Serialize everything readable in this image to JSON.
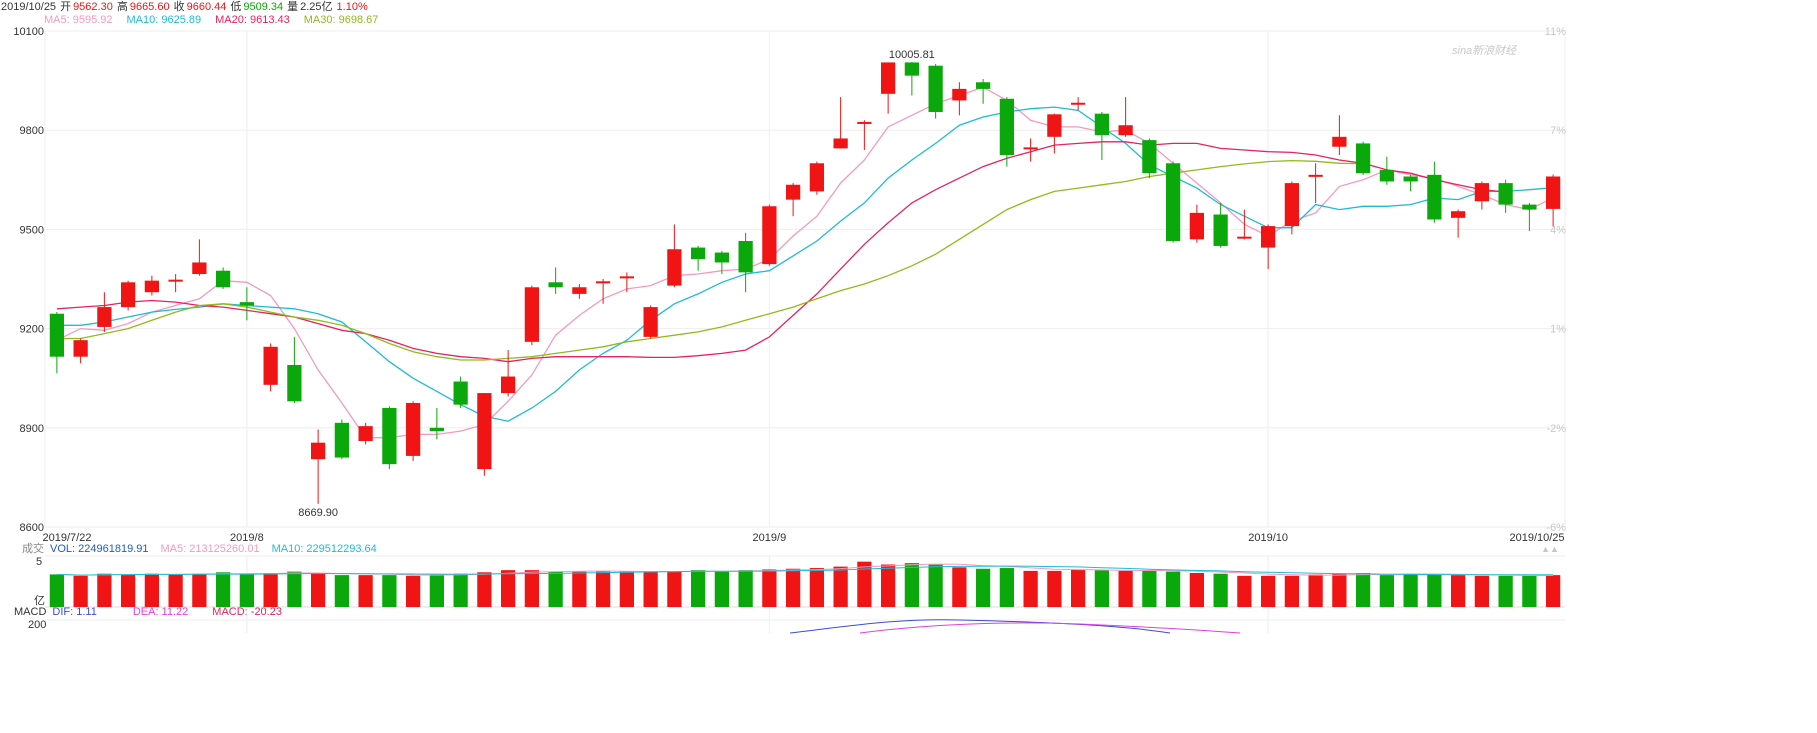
{
  "header": {
    "date": "2019/10/25",
    "open_label": "开",
    "open": "9562.30",
    "high_label": "高",
    "high": "9665.60",
    "close_label": "收",
    "close": "9660.44",
    "low_label": "低",
    "low": "9509.34",
    "vol_label": "量",
    "vol": "2.25亿",
    "change": "1.10%"
  },
  "ma_legend": {
    "ma5": "MA5: 9595.92",
    "ma10": "MA10: 9625.89",
    "ma20": "MA20: 9613.43",
    "ma30": "MA30: 9698.67"
  },
  "watermark": "sina新浪财经",
  "volume_legend": {
    "label": "成交",
    "vol": "VOL: 224961819.91",
    "ma5": "MA5: 213125260.01",
    "ma10": "MA10: 229512293.64",
    "unit": "亿",
    "tick": "5"
  },
  "macd_legend": {
    "label": "MACD",
    "dif": "DIF: 1.11",
    "dea": "DEA: 11.22",
    "macd": "MACD: -20.23",
    "tick": "200"
  },
  "colors": {
    "up": "#f01414",
    "down": "#0aa80a",
    "ma5": "#f29ac0",
    "ma10": "#1ebbd7",
    "ma20": "#e5235f",
    "ma30": "#8fbc1a"
  },
  "chart_data": {
    "type": "candlestick",
    "y_ticks": [
      "10100",
      "9800",
      "9500",
      "9200",
      "8900",
      "8600"
    ],
    "ylim": [
      8600,
      10100
    ],
    "pct_ticks": [
      "11%",
      "7%",
      "4%",
      "1%",
      "-2%",
      "-6%"
    ],
    "x_labels": [
      "2019/7/22",
      "2019/8",
      "2019/9",
      "2019/10",
      "2019/10/25"
    ],
    "annotations": {
      "high": "10005.81",
      "low": "8669.90"
    },
    "candles": [
      {
        "o": 9245,
        "c": 9115,
        "h": 9250,
        "l": 9065
      },
      {
        "o": 9115,
        "c": 9165,
        "h": 9170,
        "l": 9095
      },
      {
        "o": 9205,
        "c": 9265,
        "h": 9310,
        "l": 9190
      },
      {
        "o": 9265,
        "c": 9340,
        "h": 9345,
        "l": 9255
      },
      {
        "o": 9310,
        "c": 9345,
        "h": 9360,
        "l": 9300
      },
      {
        "o": 9345,
        "c": 9348,
        "h": 9365,
        "l": 9310
      },
      {
        "o": 9365,
        "c": 9400,
        "h": 9470,
        "l": 9360
      },
      {
        "o": 9375,
        "c": 9325,
        "h": 9385,
        "l": 9320
      },
      {
        "o": 9280,
        "c": 9270,
        "h": 9325,
        "l": 9225
      },
      {
        "o": 9030,
        "c": 9145,
        "h": 9155,
        "l": 9010
      },
      {
        "o": 9090,
        "c": 8980,
        "h": 9175,
        "l": 8975
      },
      {
        "o": 8805,
        "c": 8855,
        "h": 8895,
        "l": 8670
      },
      {
        "o": 8915,
        "c": 8810,
        "h": 8925,
        "l": 8805
      },
      {
        "o": 8860,
        "c": 8905,
        "h": 8915,
        "l": 8850
      },
      {
        "o": 8960,
        "c": 8790,
        "h": 8965,
        "l": 8775
      },
      {
        "o": 8815,
        "c": 8975,
        "h": 8980,
        "l": 8800
      },
      {
        "o": 8900,
        "c": 8890,
        "h": 8960,
        "l": 8865
      },
      {
        "o": 9040,
        "c": 8970,
        "h": 9055,
        "l": 8960
      },
      {
        "o": 8775,
        "c": 9005,
        "h": 9005,
        "l": 8755
      },
      {
        "o": 9005,
        "c": 9055,
        "h": 9135,
        "l": 8995
      },
      {
        "o": 9160,
        "c": 9325,
        "h": 9330,
        "l": 9150
      },
      {
        "o": 9340,
        "c": 9325,
        "h": 9385,
        "l": 9305
      },
      {
        "o": 9305,
        "c": 9325,
        "h": 9335,
        "l": 9290
      },
      {
        "o": 9340,
        "c": 9343,
        "h": 9350,
        "l": 9275
      },
      {
        "o": 9355,
        "c": 9358,
        "h": 9370,
        "l": 9310
      },
      {
        "o": 9175,
        "c": 9265,
        "h": 9270,
        "l": 9170
      },
      {
        "o": 9330,
        "c": 9440,
        "h": 9515,
        "l": 9325
      },
      {
        "o": 9445,
        "c": 9410,
        "h": 9450,
        "l": 9375
      },
      {
        "o": 9430,
        "c": 9400,
        "h": 9435,
        "l": 9365
      },
      {
        "o": 9465,
        "c": 9370,
        "h": 9490,
        "l": 9310
      },
      {
        "o": 9395,
        "c": 9570,
        "h": 9575,
        "l": 9390
      },
      {
        "o": 9590,
        "c": 9635,
        "h": 9640,
        "l": 9540
      },
      {
        "o": 9615,
        "c": 9700,
        "h": 9705,
        "l": 9605
      },
      {
        "o": 9745,
        "c": 9775,
        "h": 9900,
        "l": 9745
      },
      {
        "o": 9822,
        "c": 9825,
        "h": 9830,
        "l": 9740
      },
      {
        "o": 9910,
        "c": 10005,
        "h": 10005,
        "l": 9850
      },
      {
        "o": 10005,
        "c": 9965,
        "h": 10006,
        "l": 9905
      },
      {
        "o": 9995,
        "c": 9855,
        "h": 10000,
        "l": 9835
      },
      {
        "o": 9890,
        "c": 9925,
        "h": 9945,
        "l": 9845
      },
      {
        "o": 9945,
        "c": 9925,
        "h": 9955,
        "l": 9880
      },
      {
        "o": 9895,
        "c": 9725,
        "h": 9900,
        "l": 9690
      },
      {
        "o": 9745,
        "c": 9748,
        "h": 9775,
        "l": 9705
      },
      {
        "o": 9780,
        "c": 9848,
        "h": 9850,
        "l": 9730
      },
      {
        "o": 9878,
        "c": 9883,
        "h": 9900,
        "l": 9860
      },
      {
        "o": 9850,
        "c": 9785,
        "h": 9855,
        "l": 9710
      },
      {
        "o": 9785,
        "c": 9815,
        "h": 9900,
        "l": 9780
      },
      {
        "o": 9770,
        "c": 9670,
        "h": 9775,
        "l": 9655
      },
      {
        "o": 9700,
        "c": 9465,
        "h": 9705,
        "l": 9460
      },
      {
        "o": 9470,
        "c": 9550,
        "h": 9575,
        "l": 9460
      },
      {
        "o": 9545,
        "c": 9450,
        "h": 9580,
        "l": 9445
      },
      {
        "o": 9473,
        "c": 9478,
        "h": 9560,
        "l": 9470
      },
      {
        "o": 9445,
        "c": 9510,
        "h": 9515,
        "l": 9380
      },
      {
        "o": 9510,
        "c": 9640,
        "h": 9645,
        "l": 9485
      },
      {
        "o": 9660,
        "c": 9665,
        "h": 9700,
        "l": 9580
      },
      {
        "o": 9750,
        "c": 9780,
        "h": 9845,
        "l": 9725
      },
      {
        "o": 9760,
        "c": 9670,
        "h": 9765,
        "l": 9665
      },
      {
        "o": 9680,
        "c": 9645,
        "h": 9720,
        "l": 9635
      },
      {
        "o": 9660,
        "c": 9645,
        "h": 9665,
        "l": 9615
      },
      {
        "o": 9665,
        "c": 9530,
        "h": 9705,
        "l": 9520
      },
      {
        "o": 9535,
        "c": 9555,
        "h": 9560,
        "l": 9475
      },
      {
        "o": 9585,
        "c": 9640,
        "h": 9645,
        "l": 9560
      },
      {
        "o": 9640,
        "c": 9575,
        "h": 9650,
        "l": 9550
      },
      {
        "o": 9575,
        "c": 9560,
        "h": 9580,
        "l": 9495
      },
      {
        "o": 9562,
        "c": 9660,
        "h": 9666,
        "l": 9509
      }
    ],
    "series": [
      {
        "name": "MA5",
        "key": "ma5",
        "values": [
          9165,
          9200,
          9195,
          9215,
          9250,
          9270,
          9290,
          9345,
          9340,
          9300,
          9200,
          9075,
          8975,
          8870,
          8870,
          8880,
          8880,
          8890,
          8910,
          8980,
          9060,
          9180,
          9240,
          9290,
          9320,
          9330,
          9360,
          9365,
          9375,
          9380,
          9410,
          9480,
          9540,
          9640,
          9710,
          9810,
          9845,
          9880,
          9905,
          9930,
          9890,
          9830,
          9810,
          9810,
          9795,
          9800,
          9760,
          9700,
          9640,
          9580,
          9515,
          9480,
          9525,
          9550,
          9630,
          9650,
          9680,
          9665,
          9655,
          9630,
          9605,
          9575,
          9560,
          9596
        ]
      },
      {
        "name": "MA10",
        "key": "ma10",
        "values": [
          9210,
          9210,
          9220,
          9235,
          9250,
          9258,
          9265,
          9275,
          9270,
          9265,
          9260,
          9245,
          9220,
          9160,
          9100,
          9050,
          9010,
          8970,
          8935,
          8920,
          8960,
          9010,
          9075,
          9125,
          9165,
          9225,
          9275,
          9305,
          9340,
          9365,
          9375,
          9420,
          9465,
          9525,
          9580,
          9655,
          9710,
          9760,
          9815,
          9840,
          9855,
          9865,
          9870,
          9860,
          9810,
          9760,
          9695,
          9660,
          9625,
          9575,
          9540,
          9505,
          9505,
          9575,
          9560,
          9570,
          9570,
          9575,
          9595,
          9590,
          9615,
          9615,
          9620,
          9626
        ]
      },
      {
        "name": "MA20",
        "key": "ma20",
        "values": [
          9260,
          9265,
          9270,
          9280,
          9285,
          9280,
          9270,
          9265,
          9255,
          9245,
          9235,
          9215,
          9195,
          9185,
          9165,
          9140,
          9125,
          9115,
          9110,
          9100,
          9110,
          9115,
          9115,
          9115,
          9115,
          9113,
          9113,
          9118,
          9125,
          9135,
          9175,
          9240,
          9305,
          9380,
          9455,
          9520,
          9580,
          9620,
          9655,
          9690,
          9715,
          9735,
          9755,
          9760,
          9765,
          9765,
          9755,
          9760,
          9760,
          9745,
          9740,
          9735,
          9733,
          9725,
          9710,
          9700,
          9680,
          9670,
          9650,
          9635,
          9620,
          9613
        ]
      },
      {
        "name": "MA30",
        "key": "ma30",
        "values": [
          9170,
          9170,
          9185,
          9200,
          9225,
          9250,
          9270,
          9275,
          9265,
          9250,
          9235,
          9225,
          9210,
          9185,
          9155,
          9130,
          9115,
          9105,
          9105,
          9110,
          9115,
          9125,
          9135,
          9145,
          9160,
          9170,
          9180,
          9190,
          9205,
          9225,
          9245,
          9265,
          9290,
          9315,
          9335,
          9360,
          9390,
          9425,
          9470,
          9515,
          9560,
          9590,
          9615,
          9625,
          9635,
          9645,
          9660,
          9670,
          9680,
          9690,
          9698,
          9705,
          9708,
          9706,
          9700,
          9699
        ]
      }
    ],
    "volume": [
      46,
      44,
      47,
      46,
      47,
      46,
      47,
      49,
      46,
      48,
      50,
      47,
      45,
      45,
      45,
      44,
      46,
      47,
      49,
      52,
      52,
      50,
      50,
      50,
      50,
      50,
      50,
      52,
      50,
      52,
      53,
      54,
      55,
      57,
      64,
      60,
      62,
      60,
      56,
      54,
      55,
      51,
      51,
      53,
      52,
      51,
      51,
      50,
      48,
      47,
      44,
      44,
      44,
      46,
      47,
      48,
      45,
      47,
      46,
      45,
      44,
      44,
      44,
      45
    ]
  }
}
